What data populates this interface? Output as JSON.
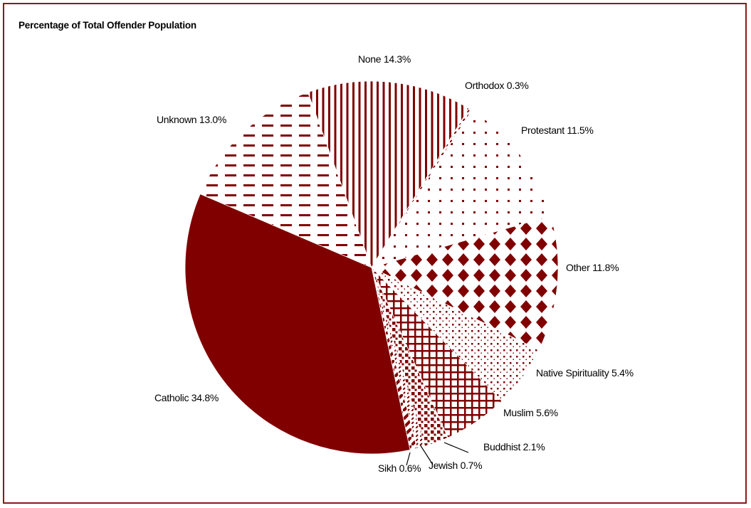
{
  "chart_data": {
    "type": "pie",
    "title": "Percentage of Total Offender Population",
    "unit": "%",
    "categories": [
      "None",
      "Orthodox",
      "Protestant",
      "Other",
      "Native Spirituality",
      "Muslim",
      "Buddhist",
      "Jewish",
      "Sikh",
      "Catholic",
      "Unknown"
    ],
    "values": [
      14.3,
      0.3,
      11.5,
      11.8,
      5.4,
      5.6,
      2.1,
      0.7,
      0.6,
      34.8,
      13.0
    ],
    "patterns": [
      "vertical-lines",
      "diagonal-dashes",
      "sparse-dots",
      "diamonds",
      "small-dots",
      "grid",
      "checker",
      "diagonal-dashes",
      "wide-diagonal",
      "solid",
      "horizontal-dashes"
    ],
    "colors": {
      "fill": "#800000",
      "border": "#8b1a1a",
      "background": "#ffffff"
    },
    "legend": "none (data labels)"
  }
}
